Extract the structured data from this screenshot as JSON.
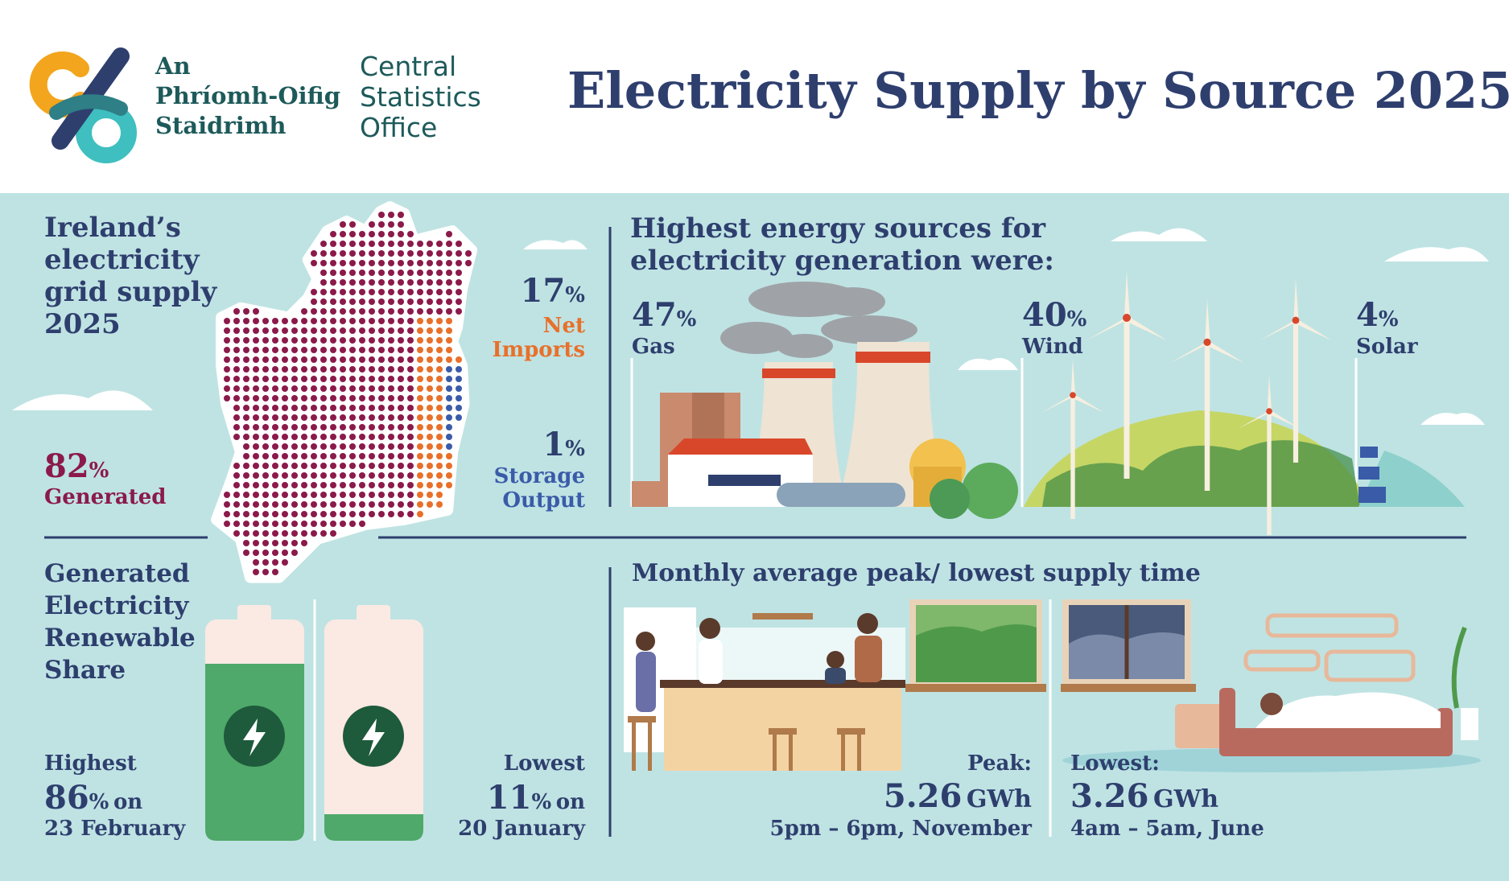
{
  "header": {
    "logo_irish": [
      "An",
      "Phríomh-Oifig",
      "Staidrimh"
    ],
    "logo_english": [
      "Central",
      "Statistics",
      "Office"
    ],
    "title": "Electricity Supply by Source 2025"
  },
  "grid_supply": {
    "heading": [
      "Ireland’s",
      "electricity",
      "grid supply",
      "2025"
    ],
    "generated": {
      "value": "82",
      "unit": "%",
      "label": "Generated"
    },
    "net_imports": {
      "value": "17",
      "unit": "%",
      "label": [
        "Net",
        "Imports"
      ]
    },
    "storage_output": {
      "value": "1",
      "unit": "%",
      "label": [
        "Storage",
        "Output"
      ]
    }
  },
  "sources": {
    "heading": [
      "Highest energy sources for",
      "electricity generation were:"
    ],
    "items": [
      {
        "value": "47",
        "unit": "%",
        "label": "Gas"
      },
      {
        "value": "40",
        "unit": "%",
        "label": "Wind"
      },
      {
        "value": "4",
        "unit": "%",
        "label": "Solar"
      }
    ]
  },
  "renewable_share": {
    "heading": [
      "Generated",
      "Electricity",
      "Renewable",
      "Share"
    ],
    "highest": {
      "label": "Highest",
      "value": "86",
      "unit": "%",
      "suffix": "on",
      "date": "23 February"
    },
    "lowest": {
      "label": "Lowest",
      "value": "11",
      "unit": "%",
      "suffix": "on",
      "date": "20 January"
    }
  },
  "supply_time": {
    "heading": "Monthly average peak/ lowest supply time",
    "peak": {
      "label": "Peak:",
      "value": "5.26",
      "unit": "GWh",
      "time": "5pm – 6pm, November"
    },
    "lowest": {
      "label": "Lowest:",
      "value": "3.26",
      "unit": "GWh",
      "time": "4am – 5am, June"
    }
  }
}
